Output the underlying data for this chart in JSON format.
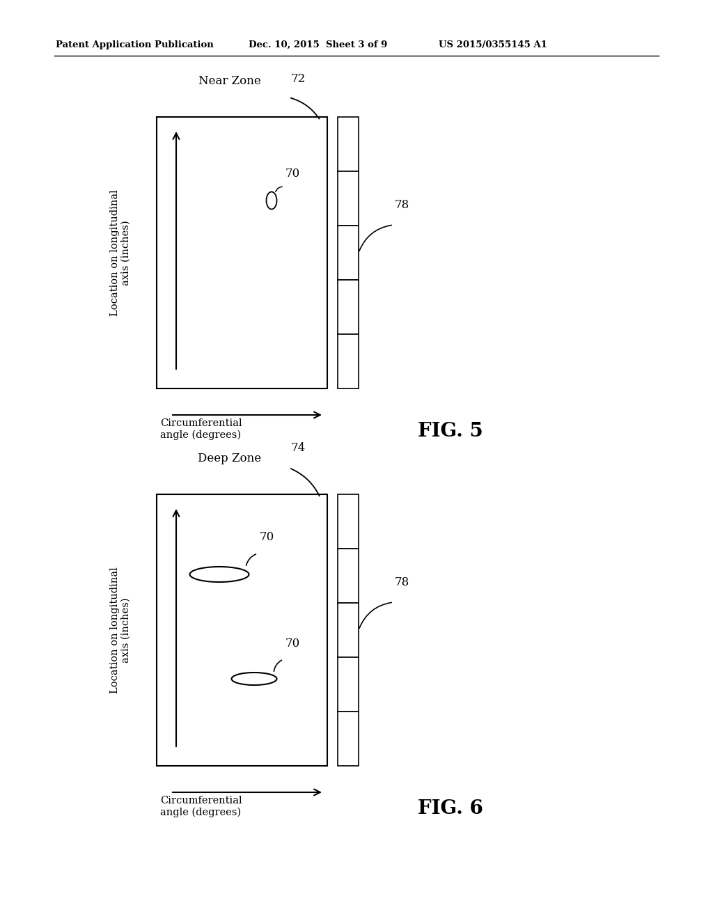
{
  "bg_color": "#ffffff",
  "text_color": "#000000",
  "header_left": "Patent Application Publication",
  "header_mid": "Dec. 10, 2015  Sheet 3 of 9",
  "header_right": "US 2015/0355145 A1",
  "fig5_label": "FIG. 5",
  "fig6_label": "FIG. 6",
  "fig5_title": "Near Zone",
  "fig6_title": "Deep Zone",
  "fig5_ref": "72",
  "fig6_ref": "74",
  "ref_78": "78",
  "ref_70": "70",
  "ylabel": "Location on longitudinal\naxis (inches)",
  "xlabel": "Circumferential\nangle (degrees)"
}
